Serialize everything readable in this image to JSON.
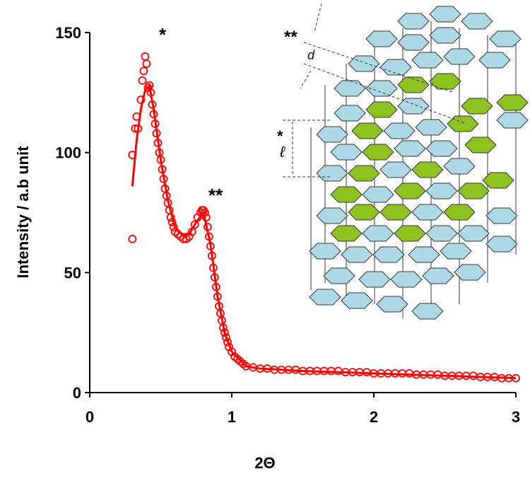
{
  "chart_data": {
    "type": "scatter",
    "x_label": "2Θ",
    "y_label": "Intensity / a.b unit",
    "xlim": [
      0,
      3
    ],
    "xticks": [
      0,
      1,
      2,
      3
    ],
    "ylim": [
      0,
      150
    ],
    "yticks": [
      0,
      50,
      100,
      150
    ],
    "annotations": [
      {
        "text": "*"
      },
      {
        "text": "**"
      },
      {
        "text": "**"
      },
      {
        "text": "d"
      },
      {
        "text": "*"
      },
      {
        "text": "ℓ"
      }
    ],
    "series": [
      {
        "type": "scatter",
        "color": "#ff0000",
        "x": [
          0.3,
          0.3,
          0.32,
          0.33,
          0.34,
          0.36,
          0.37,
          0.38,
          0.39,
          0.4,
          0.41,
          0.42,
          0.43,
          0.44,
          0.45,
          0.46,
          0.47,
          0.48,
          0.49,
          0.5,
          0.51,
          0.52,
          0.53,
          0.54,
          0.55,
          0.56,
          0.57,
          0.58,
          0.59,
          0.6,
          0.62,
          0.64,
          0.66,
          0.68,
          0.7,
          0.72,
          0.74,
          0.76,
          0.78,
          0.79,
          0.8,
          0.81,
          0.82,
          0.83,
          0.84,
          0.85,
          0.86,
          0.87,
          0.88,
          0.89,
          0.9,
          0.91,
          0.92,
          0.93,
          0.94,
          0.95,
          0.96,
          0.97,
          0.98,
          1.0,
          1.02,
          1.04,
          1.06,
          1.08,
          1.1,
          1.15,
          1.2,
          1.25,
          1.3,
          1.35,
          1.4,
          1.45,
          1.5,
          1.55,
          1.6,
          1.65,
          1.7,
          1.75,
          1.8,
          1.85,
          1.9,
          1.95,
          2.0,
          2.05,
          2.1,
          2.15,
          2.2,
          2.25,
          2.3,
          2.35,
          2.4,
          2.45,
          2.5,
          2.55,
          2.6,
          2.65,
          2.7,
          2.75,
          2.8,
          2.85,
          2.9,
          2.95,
          3.0
        ],
        "values": [
          64,
          99,
          110,
          115,
          110,
          122,
          130,
          134,
          140,
          137,
          127,
          128,
          125,
          120,
          116,
          112,
          108,
          104,
          100,
          97,
          93,
          89,
          85,
          82,
          79,
          76,
          73,
          71,
          69,
          67,
          66,
          65,
          64,
          64,
          65,
          67,
          70,
          73,
          75,
          76,
          76,
          75,
          73,
          69,
          65,
          61,
          57,
          52,
          48,
          44,
          40,
          36,
          33,
          30,
          27,
          25,
          23,
          21,
          19,
          17,
          15,
          14,
          13,
          12,
          11,
          10.5,
          10,
          10,
          9.5,
          9.5,
          9.5,
          9.5,
          9,
          9,
          9,
          9,
          9,
          9,
          8.5,
          8.5,
          8.5,
          8.5,
          8,
          8,
          8,
          8,
          8,
          8,
          7.5,
          7.5,
          7.5,
          7.5,
          7,
          7,
          7,
          7,
          7,
          6.5,
          6.5,
          6.5,
          6,
          6,
          6
        ]
      },
      {
        "type": "line",
        "color": "#ff0000",
        "x": [
          0.3,
          0.33,
          0.36,
          0.39,
          0.42,
          0.45,
          0.5,
          0.55,
          0.6,
          0.65,
          0.7,
          0.75,
          0.8,
          0.85,
          0.9,
          0.95,
          1.0,
          1.1,
          1.2,
          1.5,
          2.0,
          2.5,
          3.0
        ],
        "values": [
          86,
          105,
          118,
          126,
          128,
          118,
          97,
          80,
          69,
          66,
          66,
          71,
          75,
          62,
          40,
          25,
          17,
          11,
          10,
          9,
          8,
          7,
          6
        ]
      }
    ]
  }
}
